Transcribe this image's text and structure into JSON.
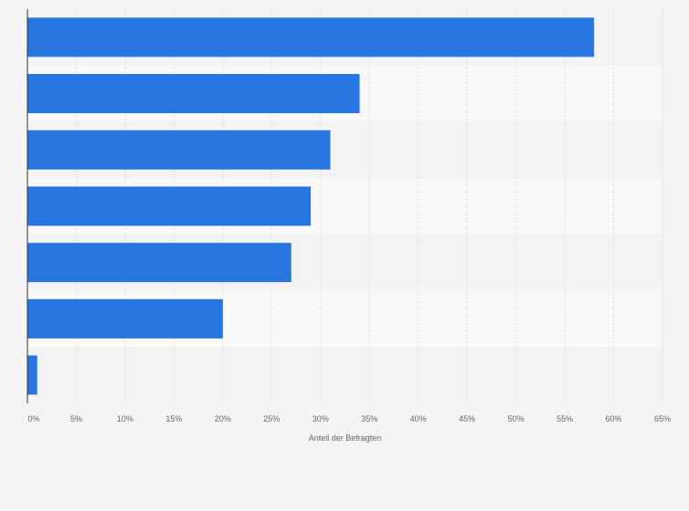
{
  "chart_data": {
    "type": "bar",
    "orientation": "horizontal",
    "categories": [
      "",
      "",
      "",
      "",
      "",
      "",
      ""
    ],
    "values": [
      58,
      34,
      31,
      29,
      27,
      20,
      1
    ],
    "xlabel": "Anteil der Befragten",
    "xlim": [
      0,
      65
    ],
    "xticks": [
      0,
      5,
      10,
      15,
      20,
      25,
      30,
      35,
      40,
      45,
      50,
      55,
      60,
      65
    ],
    "xtick_labels": [
      "0%",
      "5%",
      "10%",
      "15%",
      "20%",
      "25%",
      "30%",
      "35%",
      "40%",
      "45%",
      "50%",
      "55%",
      "60%",
      "65%"
    ],
    "grid": true,
    "colors": {
      "bar": "#2776df",
      "band_light": "#f9f9f9",
      "band_dark": "#f3f3f3",
      "gridline": "#dcdcdc",
      "axis": "#333333",
      "tick_text": "#666666"
    }
  }
}
